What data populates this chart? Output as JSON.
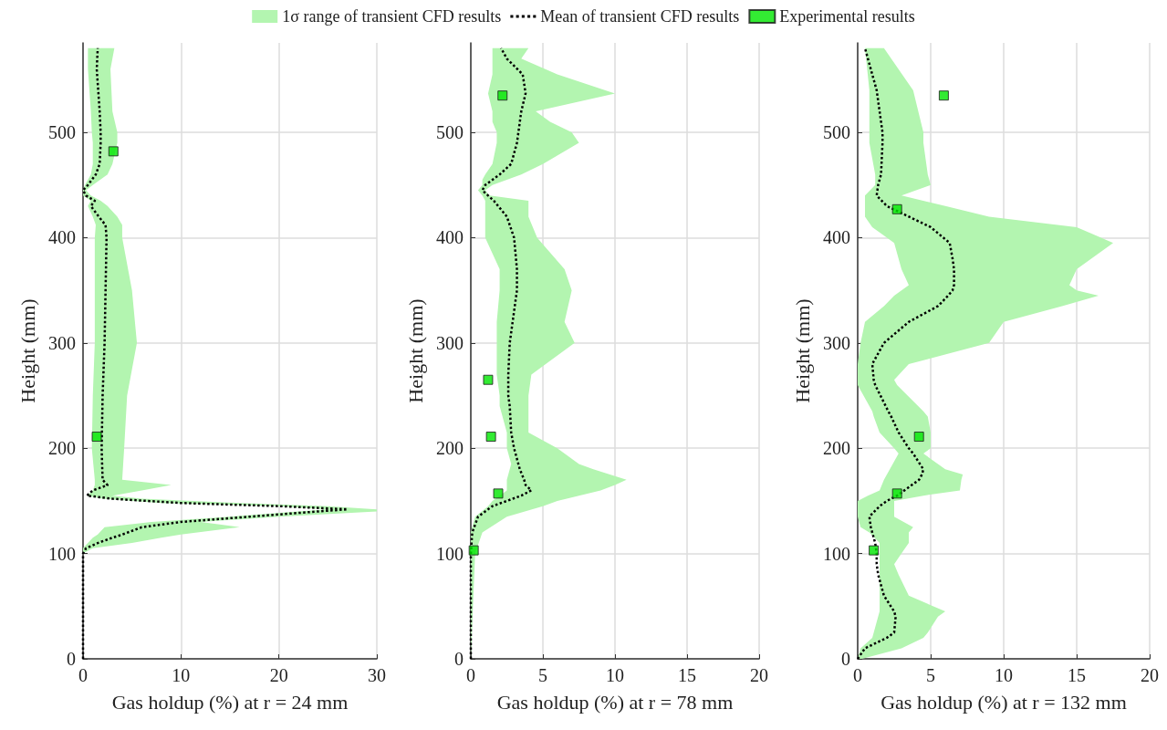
{
  "chart_data": [
    {
      "type": "line",
      "orientation": "horizontal",
      "xlabel": "Gas holdup (%) at r = 24 mm",
      "ylabel": "Height (mm)",
      "xlim": [
        0,
        30
      ],
      "xticks": [
        0,
        10,
        20,
        30
      ],
      "ylim": [
        0,
        585
      ],
      "yticks": [
        0,
        100,
        200,
        300,
        400,
        500
      ],
      "grid": true,
      "legend": "top",
      "series": [
        {
          "name": "1σ range of transient CFD results",
          "type": "area",
          "color": "#b3f5b0"
        },
        {
          "name": "Mean of transient CFD results",
          "type": "line",
          "color": "#000000",
          "line_style": "dotted",
          "marker": "none",
          "x": [
            0,
            100,
            105,
            110,
            115,
            118,
            125,
            130,
            135,
            140,
            142,
            145,
            148,
            152,
            155,
            160,
            165,
            170,
            200,
            250,
            300,
            350,
            400,
            412,
            420,
            430,
            435,
            440,
            445,
            450,
            460,
            470,
            490,
            500,
            520,
            560,
            580
          ],
          "values": [
            0,
            0,
            0.3,
            1.5,
            3,
            4,
            6,
            10,
            17,
            24,
            27,
            20,
            10,
            3,
            0.4,
            1,
            2.5,
            2,
            1.9,
            2,
            2.2,
            2.3,
            2.4,
            2.3,
            1.6,
            0.8,
            1.2,
            0.3,
            0,
            0.5,
            1.3,
            1.7,
            1.8,
            1.8,
            1.7,
            1.4,
            1.5
          ],
          "lower": [
            0,
            0,
            0,
            0.5,
            1,
            1.5,
            2.2,
            7,
            15,
            22,
            25,
            20,
            8,
            2,
            0.4,
            1,
            1.2,
            1.2,
            0.9,
            1,
            1.2,
            1.2,
            1.2,
            1.3,
            1,
            0.5,
            0.8,
            0,
            0,
            0.2,
            0.8,
            1,
            1,
            0.9,
            0.8,
            0.5,
            0.5
          ],
          "upper": [
            0,
            0,
            1,
            5,
            8,
            10,
            16,
            12,
            20,
            30,
            30,
            25,
            16,
            6,
            3,
            6,
            9,
            4,
            4.2,
            4.5,
            5.5,
            5,
            4,
            4,
            3.5,
            2.5,
            1.8,
            0.8,
            0.3,
            1,
            2.5,
            3,
            3.5,
            3.5,
            3,
            2.8,
            3.2
          ]
        },
        {
          "name": "Experimental results",
          "type": "scatter",
          "color": "#00e600",
          "marker": "square",
          "x": [
            482,
            211
          ],
          "values": [
            3.1,
            1.4
          ]
        }
      ]
    },
    {
      "type": "line",
      "orientation": "horizontal",
      "xlabel": "Gas holdup (%) at r = 78 mm",
      "ylabel": "Height (mm)",
      "xlim": [
        0,
        20
      ],
      "xticks": [
        0,
        5,
        10,
        15,
        20
      ],
      "ylim": [
        0,
        585
      ],
      "yticks": [
        0,
        100,
        200,
        300,
        400,
        500
      ],
      "grid": true,
      "series": [
        {
          "type": "area",
          "color": "#b3f5b0"
        },
        {
          "type": "line",
          "color": "#000000",
          "line_style": "dotted",
          "marker": "none",
          "x": [
            0,
            100,
            120,
            135,
            145,
            150,
            155,
            160,
            165,
            170,
            180,
            185,
            200,
            215,
            240,
            250,
            270,
            300,
            320,
            350,
            370,
            400,
            420,
            435,
            440,
            445,
            450,
            455,
            460,
            470,
            490,
            500,
            510,
            520,
            537,
            555,
            570,
            580
          ],
          "values": [
            0,
            0,
            0.1,
            0.5,
            1.5,
            2.5,
            3.5,
            4.2,
            3.8,
            3.7,
            3.4,
            3.3,
            3,
            2.8,
            2.7,
            2.6,
            2.6,
            2.7,
            2.9,
            3.2,
            3.2,
            3,
            2.5,
            1.6,
            1.2,
            0.8,
            1,
            1.5,
            2,
            2.8,
            3.2,
            3.3,
            3.4,
            3.5,
            3.8,
            3.6,
            2.5,
            2.1
          ],
          "lower": [
            0,
            0,
            0,
            0.3,
            1.2,
            1.5,
            2,
            2.5,
            2.5,
            2.5,
            2.7,
            2.8,
            2.5,
            2.5,
            2,
            2,
            1.8,
            1.8,
            1.8,
            2,
            2,
            1,
            1,
            1,
            0.8,
            0.5,
            0.8,
            0.8,
            1,
            1.5,
            1.8,
            1.8,
            1.5,
            1.5,
            1.2,
            1.5,
            1.5,
            1.5
          ],
          "upper": [
            0,
            0.3,
            0.8,
            2.5,
            5,
            6,
            7.5,
            9,
            10,
            10.8,
            8.5,
            7.5,
            6,
            4,
            4,
            4,
            4.2,
            7.2,
            6.5,
            7,
            6.5,
            4.6,
            4,
            4,
            1.3,
            1,
            1.5,
            2.5,
            3.5,
            5,
            7.5,
            7,
            5.5,
            4.5,
            10,
            6,
            3.5,
            4
          ]
        },
        {
          "type": "scatter",
          "color": "#00e600",
          "marker": "square",
          "x": [
            535,
            265,
            211,
            157,
            103
          ],
          "values": [
            2.2,
            1.2,
            1.4,
            1.9,
            0.2
          ]
        }
      ]
    },
    {
      "type": "line",
      "orientation": "horizontal",
      "xlabel": "Gas holdup (%) at r = 132 mm",
      "ylabel": "Height (mm)",
      "xlim": [
        0,
        20
      ],
      "xticks": [
        0,
        5,
        10,
        15,
        20
      ],
      "ylim": [
        0,
        585
      ],
      "yticks": [
        0,
        100,
        200,
        300,
        400,
        500
      ],
      "grid": true,
      "series": [
        {
          "type": "area",
          "color": "#b3f5b0"
        },
        {
          "type": "line",
          "color": "#000000",
          "line_style": "dotted",
          "marker": "none",
          "x": [
            0,
            10,
            20,
            25,
            40,
            45,
            60,
            80,
            90,
            100,
            110,
            120,
            125,
            135,
            145,
            150,
            155,
            160,
            170,
            175,
            180,
            195,
            200,
            215,
            230,
            235,
            260,
            265,
            280,
            300,
            320,
            335,
            345,
            350,
            355,
            370,
            380,
            395,
            410,
            420,
            430,
            440,
            450,
            460,
            490,
            500,
            540,
            580
          ],
          "values": [
            0,
            0.5,
            2,
            2.5,
            2.6,
            2.5,
            1.8,
            1.4,
            1.3,
            1.3,
            1.2,
            1,
            0.9,
            0.8,
            1.5,
            2,
            2.7,
            3.2,
            4.2,
            4.4,
            4.5,
            3.8,
            3.5,
            2.8,
            2.3,
            2.1,
            1.2,
            1.1,
            1,
            1.8,
            3.5,
            5.5,
            6.2,
            6.5,
            6.6,
            6.6,
            6.5,
            6.3,
            5,
            3.5,
            2,
            1.3,
            1.4,
            1.6,
            1.7,
            1.7,
            1.3,
            0.5
          ],
          "lower": [
            0,
            0.2,
            1,
            1.1,
            1.4,
            1.5,
            1.5,
            1.5,
            1.5,
            1.5,
            1.5,
            0.8,
            0.2,
            0,
            0,
            0,
            0.7,
            1.5,
            1.8,
            2,
            2.2,
            2.8,
            2.5,
            1.5,
            1.1,
            1,
            0,
            0,
            0,
            0.2,
            0.5,
            1.8,
            2.5,
            3,
            3.5,
            3,
            2.8,
            2.5,
            1,
            0.5,
            0.5,
            0.5,
            1.2,
            1.2,
            0.8,
            0.8,
            0.8,
            0.5
          ],
          "upper": [
            0.3,
            3,
            4.5,
            4.8,
            5.5,
            6,
            3.5,
            2.8,
            2.5,
            3,
            3.5,
            3.5,
            3.8,
            2.5,
            2.5,
            2.5,
            4.5,
            7,
            7.1,
            7.2,
            6,
            4.5,
            5,
            5,
            4.8,
            4.5,
            2.7,
            2.5,
            3.5,
            9,
            10,
            14,
            16.5,
            15,
            14.5,
            15,
            16,
            17.5,
            15,
            9,
            6,
            3,
            5,
            4.8,
            4.5,
            4.5,
            3.8,
            1.8
          ]
        },
        {
          "type": "scatter",
          "color": "#00e600",
          "marker": "square",
          "x": [
            535,
            427,
            211,
            157,
            103
          ],
          "values": [
            5.9,
            2.7,
            4.2,
            2.7,
            1.1
          ]
        }
      ]
    }
  ]
}
